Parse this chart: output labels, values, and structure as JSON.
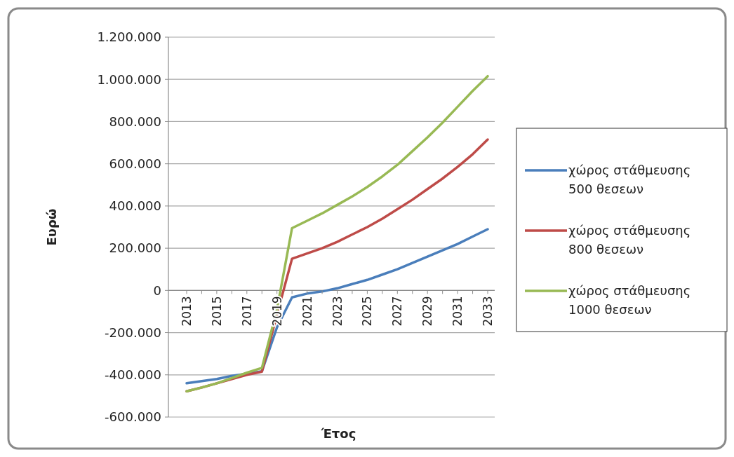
{
  "chart_data": {
    "type": "line",
    "xlabel": "Έτος",
    "ylabel": "Ευρώ",
    "categories": [
      "2013",
      null,
      "2015",
      null,
      "2017",
      null,
      "2019",
      null,
      "2021",
      null,
      "2023",
      null,
      "2025",
      null,
      "2027",
      null,
      "2029",
      null,
      "2031",
      null,
      "2033"
    ],
    "series": [
      {
        "name": "χώρος στάθμευσης 500 θεσεων",
        "color": "#4a7ebb",
        "values": [
          -440000,
          -430000,
          -420000,
          -405000,
          -395000,
          -383000,
          -175000,
          -33000,
          -15000,
          -5000,
          10000,
          30000,
          50000,
          75000,
          100000,
          130000,
          160000,
          190000,
          220000,
          255000,
          290000
        ]
      },
      {
        "name": "χώρος στάθμευσης 800 θεσεων",
        "color": "#be4b48",
        "values": [
          -478000,
          -460000,
          -440000,
          -420000,
          -400000,
          -385000,
          -115000,
          150000,
          175000,
          200000,
          230000,
          265000,
          300000,
          340000,
          385000,
          430000,
          480000,
          530000,
          585000,
          645000,
          715000
        ]
      },
      {
        "name": "χώρος στάθμευσης 1000 θεσεων",
        "color": "#98b954",
        "values": [
          -478000,
          -460000,
          -440000,
          -415000,
          -390000,
          -367000,
          -90000,
          295000,
          330000,
          365000,
          405000,
          445000,
          490000,
          540000,
          595000,
          660000,
          725000,
          795000,
          870000,
          945000,
          1015000
        ]
      }
    ],
    "ylim": [
      -600000,
      1200000
    ],
    "yticks": [
      {
        "value": -600000,
        "label": "-600.000"
      },
      {
        "value": -400000,
        "label": "-400.000"
      },
      {
        "value": -200000,
        "label": "-200.000"
      },
      {
        "value": 0,
        "label": "0"
      },
      {
        "value": 200000,
        "label": "200.000"
      },
      {
        "value": 400000,
        "label": "400.000"
      },
      {
        "value": 600000,
        "label": "600.000"
      },
      {
        "value": 800000,
        "label": "800.000"
      },
      {
        "value": 1000000,
        "label": "1.000.000"
      },
      {
        "value": 1200000,
        "label": "1.200.000"
      }
    ],
    "grid": "y",
    "legend": "right",
    "marker": "none",
    "line_style": "solid"
  }
}
